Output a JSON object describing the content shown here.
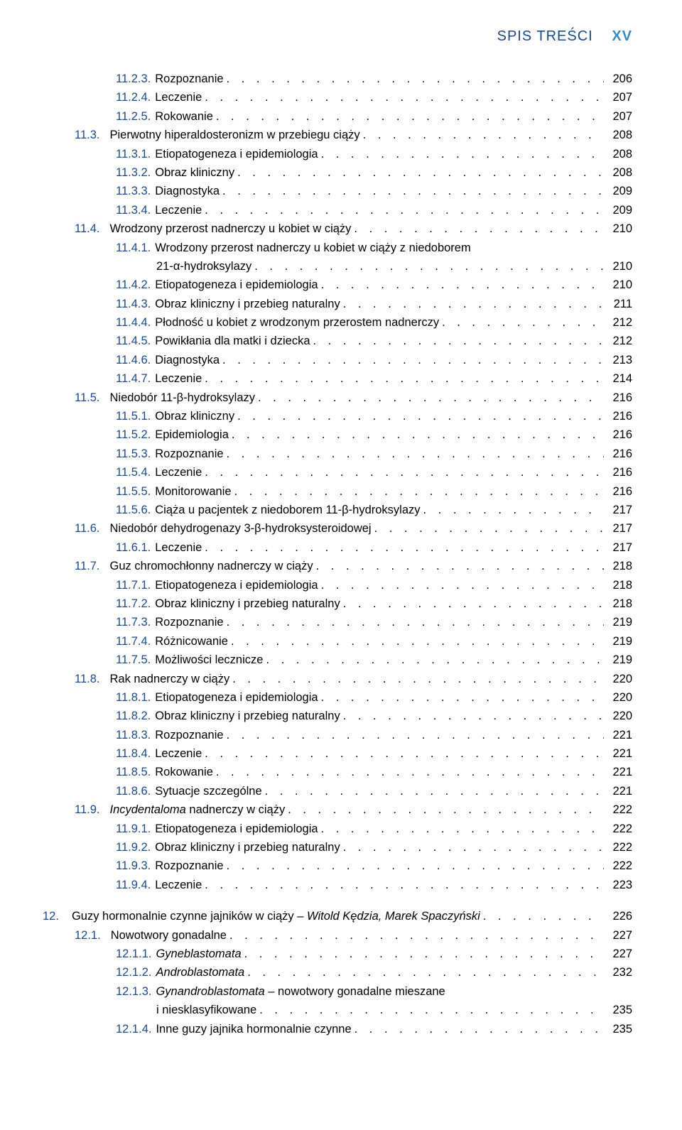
{
  "header": {
    "title": "SPIS TREŚCI",
    "page": "XV"
  },
  "colors": {
    "section_number": "#1a4a8a",
    "header_title": "#1a4a8a",
    "header_page": "#3a8ac4",
    "text": "#000000",
    "background": "#ffffff"
  },
  "typography": {
    "body_fontsize": 16.5,
    "header_fontsize": 20,
    "font_family": "Arial"
  },
  "entries": [
    {
      "indent": 2,
      "num": "11.2.3.",
      "title": "Rozpoznanie",
      "page": "206"
    },
    {
      "indent": 2,
      "num": "11.2.4.",
      "title": "Leczenie",
      "page": "207"
    },
    {
      "indent": 2,
      "num": "11.2.5.",
      "title": "Rokowanie",
      "page": "207"
    },
    {
      "indent": 1,
      "num": "11.3.",
      "title": "Pierwotny hiperaldosteronizm w przebiegu ciąży",
      "page": "208"
    },
    {
      "indent": 2,
      "num": "11.3.1.",
      "title": "Etiopatogeneza i epidemiologia",
      "page": "208"
    },
    {
      "indent": 2,
      "num": "11.3.2.",
      "title": "Obraz kliniczny",
      "page": "208"
    },
    {
      "indent": 2,
      "num": "11.3.3.",
      "title": "Diagnostyka",
      "page": "209"
    },
    {
      "indent": 2,
      "num": "11.3.4.",
      "title": "Leczenie",
      "page": "209"
    },
    {
      "indent": 1,
      "num": "11.4.",
      "title": "Wrodzony przerost nadnerczy u kobiet w ciąży",
      "page": "210"
    },
    {
      "indent": 2,
      "num": "11.4.1.",
      "title": "Wrodzony przerost nadnerczy u kobiet w ciąży z niedoborem",
      "cont": "21-α-hydroksylazy",
      "page": "210"
    },
    {
      "indent": 2,
      "num": "11.4.2.",
      "title": "Etiopatogeneza i epidemiologia",
      "page": "210"
    },
    {
      "indent": 2,
      "num": "11.4.3.",
      "title": "Obraz kliniczny i przebieg naturalny",
      "page": "211"
    },
    {
      "indent": 2,
      "num": "11.4.4.",
      "title": "Płodność u kobiet z wrodzonym przerostem nadnerczy",
      "page": "212"
    },
    {
      "indent": 2,
      "num": "11.4.5.",
      "title": "Powikłania dla matki i dziecka",
      "page": "212"
    },
    {
      "indent": 2,
      "num": "11.4.6.",
      "title": "Diagnostyka",
      "page": "213"
    },
    {
      "indent": 2,
      "num": "11.4.7.",
      "title": "Leczenie",
      "page": "214"
    },
    {
      "indent": 1,
      "num": "11.5.",
      "title": "Niedobór 11-β-hydroksylazy",
      "page": "216"
    },
    {
      "indent": 2,
      "num": "11.5.1.",
      "title": "Obraz kliniczny",
      "page": "216"
    },
    {
      "indent": 2,
      "num": "11.5.2.",
      "title": "Epidemiologia",
      "page": "216"
    },
    {
      "indent": 2,
      "num": "11.5.3.",
      "title": "Rozpoznanie",
      "page": "216"
    },
    {
      "indent": 2,
      "num": "11.5.4.",
      "title": "Leczenie",
      "page": "216"
    },
    {
      "indent": 2,
      "num": "11.5.5.",
      "title": "Monitorowanie",
      "page": "216"
    },
    {
      "indent": 2,
      "num": "11.5.6.",
      "title": "Ciąża u pacjentek z niedoborem 11-β-hydroksylazy",
      "page": "217"
    },
    {
      "indent": 1,
      "num": "11.6.",
      "title": "Niedobór dehydrogenazy 3-β-hydroksysteroidowej",
      "page": "217"
    },
    {
      "indent": 2,
      "num": "11.6.1.",
      "title": "Leczenie",
      "page": "217"
    },
    {
      "indent": 1,
      "num": "11.7.",
      "title": "Guz chromochłonny nadnerczy w ciąży",
      "page": "218"
    },
    {
      "indent": 2,
      "num": "11.7.1.",
      "title": "Etiopatogeneza i epidemiologia",
      "page": "218"
    },
    {
      "indent": 2,
      "num": "11.7.2.",
      "title": "Obraz kliniczny i przebieg naturalny",
      "page": "218"
    },
    {
      "indent": 2,
      "num": "11.7.3.",
      "title": "Rozpoznanie",
      "page": "219"
    },
    {
      "indent": 2,
      "num": "11.7.4.",
      "title": "Różnicowanie",
      "page": "219"
    },
    {
      "indent": 2,
      "num": "11.7.5.",
      "title": "Możliwości lecznicze",
      "page": "219"
    },
    {
      "indent": 1,
      "num": "11.8.",
      "title": "Rak nadnerczy w ciąży",
      "page": "220"
    },
    {
      "indent": 2,
      "num": "11.8.1.",
      "title": "Etiopatogeneza i epidemiologia",
      "page": "220"
    },
    {
      "indent": 2,
      "num": "11.8.2.",
      "title": "Obraz kliniczny i przebieg naturalny",
      "page": "220"
    },
    {
      "indent": 2,
      "num": "11.8.3.",
      "title": "Rozpoznanie",
      "page": "221"
    },
    {
      "indent": 2,
      "num": "11.8.4.",
      "title": "Leczenie",
      "page": "221"
    },
    {
      "indent": 2,
      "num": "11.8.5.",
      "title": "Rokowanie",
      "page": "221"
    },
    {
      "indent": 2,
      "num": "11.8.6.",
      "title": "Sytuacje szczególne",
      "page": "221"
    },
    {
      "indent": 1,
      "num": "11.9.",
      "title": "Incydentaloma nadnerczy w ciąży",
      "title_italic_word": "Incydentaloma",
      "page": "222"
    },
    {
      "indent": 2,
      "num": "11.9.1.",
      "title": "Etiopatogeneza i epidemiologia",
      "page": "222"
    },
    {
      "indent": 2,
      "num": "11.9.2.",
      "title": "Obraz kliniczny i przebieg naturalny",
      "page": "222"
    },
    {
      "indent": 2,
      "num": "11.9.3.",
      "title": "Rozpoznanie",
      "page": "222"
    },
    {
      "indent": 2,
      "num": "11.9.4.",
      "title": "Leczenie",
      "page": "223"
    },
    {
      "spacer": true
    },
    {
      "indent": 0,
      "num": "12.",
      "title": "Guzy hormonalnie czynne jajników w ciąży – ",
      "authors": "Witold Kędzia, Marek Spaczyński",
      "page": "226"
    },
    {
      "indent": 1,
      "num": "12.1.",
      "title": "Nowotwory gonadalne",
      "page": "227"
    },
    {
      "indent": 2,
      "num": "12.1.1.",
      "title": "Gyneblastomata",
      "italic": true,
      "page": "227"
    },
    {
      "indent": 2,
      "num": "12.1.2.",
      "title": "Androblastomata",
      "italic": true,
      "page": "232"
    },
    {
      "indent": 2,
      "num": "12.1.3.",
      "title_parts": [
        {
          "text": "Gynandroblastomata",
          "italic": true
        },
        {
          "text": " – nowotwory gonadalne mieszane",
          "italic": false
        }
      ],
      "cont": "i niesklasyfikowane",
      "page": "235"
    },
    {
      "indent": 2,
      "num": "12.1.4.",
      "title": "Inne guzy jajnika hormonalnie czynne",
      "page": "235"
    }
  ]
}
